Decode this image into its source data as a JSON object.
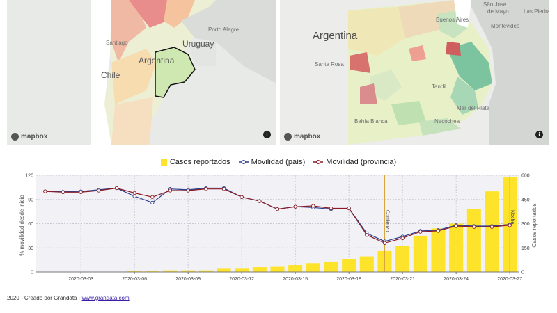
{
  "map_left": {
    "labels": {
      "santiago": "Santiago",
      "porto_alegre": "Porto Alegre",
      "uruguay": "Uruguay",
      "argentina": "Argentina",
      "chile": "Chile"
    },
    "logo": "mapbox",
    "info_icon": "info-icon"
  },
  "map_right": {
    "labels": {
      "argentina": "Argentina",
      "sao_jose": "São José",
      "de_mayo": "de Mayo",
      "montevideo": "Montevideo",
      "las_piedras": "Las Piedras",
      "buenos_aires": "Buenos Aires",
      "santa_rosa": "Santa Rosa",
      "tandil": "Tandil",
      "mar_del_plata": "Mar del Plata",
      "bahia_blanca": "Bahía Blanca",
      "necochea": "Necochea"
    },
    "logo": "mapbox",
    "info_icon": "info-icon"
  },
  "legend": {
    "cases": "Casos reportados",
    "country": "Movilidad (país)",
    "province": "Movilidad (provincia)"
  },
  "footer": {
    "text": "2020 - Creado por Grandata - ",
    "link": "www.grandata.com"
  },
  "colors": {
    "cases": "#fde42a",
    "country": "#2b3f8f",
    "province": "#8a1b26",
    "marker": "#d8a53c"
  },
  "chart_data": {
    "type": "bar+line",
    "dates": [
      "2020-03-01",
      "2020-03-02",
      "2020-03-03",
      "2020-03-04",
      "2020-03-05",
      "2020-03-06",
      "2020-03-07",
      "2020-03-08",
      "2020-03-09",
      "2020-03-10",
      "2020-03-11",
      "2020-03-12",
      "2020-03-13",
      "2020-03-14",
      "2020-03-15",
      "2020-03-16",
      "2020-03-17",
      "2020-03-18",
      "2020-03-19",
      "2020-03-20",
      "2020-03-21",
      "2020-03-22",
      "2020-03-23",
      "2020-03-24",
      "2020-03-25",
      "2020-03-26",
      "2020-03-27"
    ],
    "xticks": [
      "2020-03-03",
      "2020-03-06",
      "2020-03-09",
      "2020-03-12",
      "2020-03-15",
      "2020-03-18",
      "2020-03-21",
      "2020-03-24",
      "2020-03-27"
    ],
    "cases": [
      1,
      1,
      2,
      2,
      2,
      5,
      6,
      10,
      10,
      10,
      20,
      20,
      30,
      32,
      43,
      55,
      65,
      80,
      97,
      130,
      160,
      225,
      270,
      300,
      390,
      500,
      590
    ],
    "mobility_country": [
      100,
      99.5,
      100,
      102,
      104,
      94,
      86,
      103,
      102,
      104,
      104,
      93,
      88,
      78,
      81,
      80,
      78,
      79,
      48,
      38,
      44,
      51,
      52,
      58,
      57,
      57,
      59
    ],
    "mobility_province": [
      100,
      99,
      99,
      101,
      104,
      98,
      93,
      101,
      101,
      103,
      103,
      93,
      88,
      78,
      81,
      82,
      79,
      79,
      46,
      36,
      42,
      50,
      51,
      57,
      56,
      56,
      58
    ],
    "y_left": {
      "label": "% movilidad desde inicio",
      "ticks": [
        0,
        30,
        60,
        90,
        120
      ],
      "range": [
        0,
        120
      ]
    },
    "y_right": {
      "label": "Casos reportados",
      "ticks": [
        0,
        150,
        300,
        450,
        600
      ],
      "range": [
        0,
        600
      ]
    },
    "annotations": [
      {
        "date": "2020-03-20",
        "label": "Comienzo"
      },
      {
        "date": "2020-03-27",
        "label": "Noche"
      }
    ]
  }
}
